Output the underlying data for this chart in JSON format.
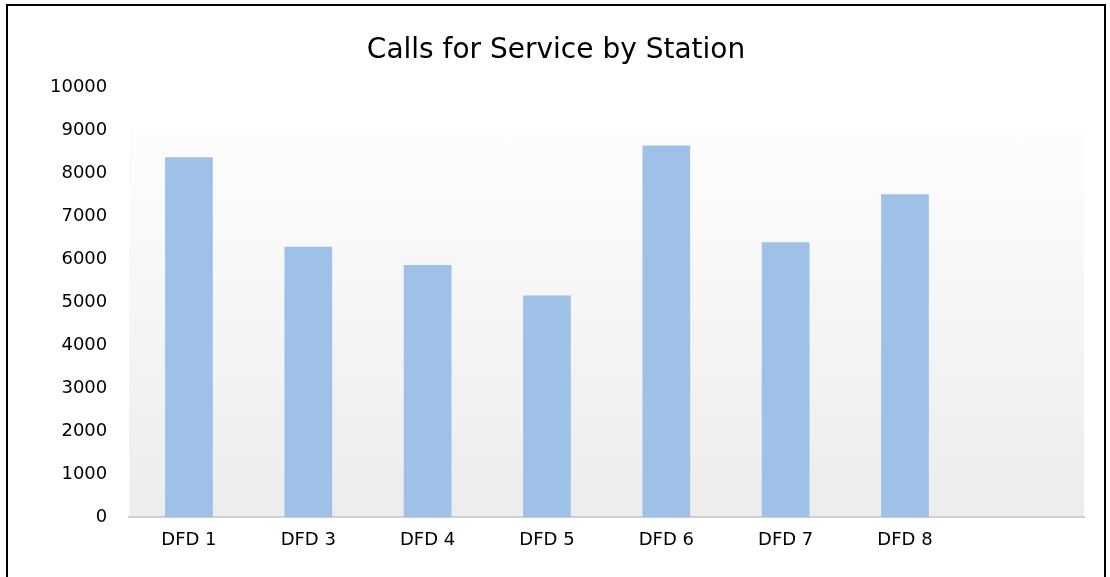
{
  "chart_data": {
    "type": "bar",
    "title": "Calls for Service by Station",
    "categories": [
      "DFD 1",
      "DFD 3",
      "DFD 4",
      "DFD 5",
      "DFD 6",
      "DFD 7",
      "DFD 8",
      null
    ],
    "values": [
      8380,
      6300,
      5870,
      5160,
      8650,
      6400,
      7520,
      null
    ],
    "color": "#9fc1e7",
    "ylim": [
      0,
      10000
    ],
    "yticks": [
      0,
      1000,
      2000,
      3000,
      4000,
      5000,
      6000,
      7000,
      8000,
      9000,
      10000
    ],
    "grid": false,
    "legend": false
  }
}
